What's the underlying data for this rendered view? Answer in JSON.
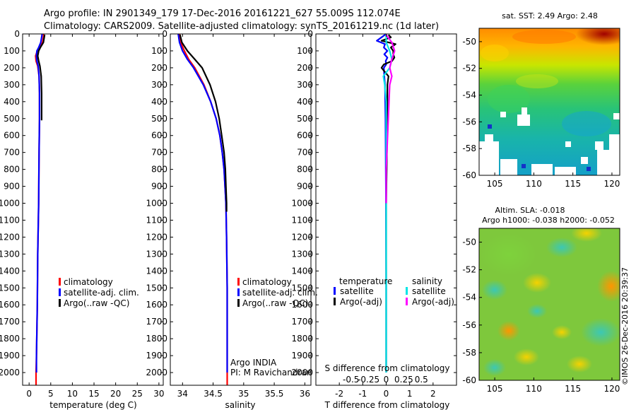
{
  "header": {
    "line1": "Argo profile: IN 2901349_179 17-Dec-2016 20161221_627 55.009S 112.074E",
    "line2": "Climatology: CARS2009. Satellite-adjusted climatology: synTS_20161219.nc (1d later)"
  },
  "footer": {
    "timestamp": "©IMOS 26-Dec-2016 20:39:37"
  },
  "chart_data": [
    {
      "id": "temperature",
      "type": "line",
      "xlabel": "temperature (deg C)",
      "xlim": [
        -1.5,
        31
      ],
      "xticks": [
        0,
        5,
        10,
        15,
        20,
        25,
        30
      ],
      "xtick_labels": [
        "0",
        "5",
        "10",
        "15",
        "20",
        "25",
        "30"
      ],
      "ylim": [
        2075,
        0
      ],
      "yticks": [
        0,
        100,
        200,
        300,
        400,
        500,
        600,
        700,
        800,
        900,
        1000,
        1100,
        1200,
        1300,
        1400,
        1500,
        1600,
        1700,
        1800,
        1900,
        2000
      ],
      "ytick_labels": [
        "0",
        "100",
        "200",
        "300",
        "400",
        "500",
        "600",
        "700",
        "800",
        "900",
        "1000",
        "1100",
        "1200",
        "1300",
        "1400",
        "1500",
        "1600",
        "1700",
        "1800",
        "1900",
        "2000"
      ],
      "legend": [
        "climatology",
        "satellite-adj. clim.",
        "Argo(..raw -QC)"
      ],
      "legend_position": "center-left",
      "series": [
        {
          "name": "climatology",
          "color": "#ff0000",
          "depth": [
            0,
            20,
            50,
            80,
            100,
            130,
            160,
            190,
            250,
            350,
            500,
            700,
            1000,
            1300,
            1600,
            1900,
            2000,
            2075
          ],
          "values": [
            3.4,
            3.3,
            3.1,
            2.4,
            1.9,
            1.5,
            1.6,
            2.0,
            2.3,
            2.4,
            2.4,
            2.3,
            2.2,
            2.0,
            1.9,
            1.7,
            1.6,
            1.6
          ]
        },
        {
          "name": "satellite-adj. clim.",
          "color": "#0000ff",
          "depth": [
            0,
            20,
            50,
            80,
            100,
            130,
            160,
            190,
            250,
            350,
            500,
            700,
            1000,
            1300,
            1600,
            1900,
            2000
          ],
          "values": [
            3.0,
            2.9,
            2.7,
            2.2,
            1.8,
            1.7,
            1.8,
            2.1,
            2.3,
            2.4,
            2.4,
            2.3,
            2.2,
            2.0,
            1.9,
            1.7,
            1.7
          ]
        },
        {
          "name": "Argo(..raw -QC)",
          "color": "#000000",
          "depth": [
            5,
            20,
            50,
            80,
            100,
            130,
            160,
            190,
            250,
            350,
            500,
            510
          ],
          "values": [
            3.6,
            3.5,
            3.3,
            2.6,
            2.2,
            2.0,
            2.2,
            2.5,
            2.8,
            2.9,
            2.9,
            2.9
          ]
        }
      ]
    },
    {
      "id": "salinity",
      "type": "line",
      "xlabel": "salinity",
      "xlim": [
        33.8,
        36.1
      ],
      "xticks": [
        34,
        34.5,
        35,
        35.5,
        36
      ],
      "xtick_labels": [
        "34",
        "34.5",
        "35",
        "35.5",
        "36"
      ],
      "ylim": [
        2075,
        0
      ],
      "legend": [
        "climatology",
        "satellite-adj. clim.",
        "Argo(..raw -QC)"
      ],
      "legend_position": "center-right",
      "annotation": [
        "Argo INDIA",
        "PI: M Ravichandran"
      ],
      "series": [
        {
          "name": "climatology",
          "color": "#ff0000",
          "depth": [
            0,
            50,
            100,
            150,
            200,
            300,
            400,
            500,
            600,
            700,
            800,
            1000,
            1200,
            1500,
            1800,
            2000,
            2075
          ],
          "values": [
            33.95,
            33.97,
            34.03,
            34.1,
            34.2,
            34.35,
            34.46,
            34.55,
            34.61,
            34.65,
            34.68,
            34.71,
            34.72,
            34.73,
            34.73,
            34.73,
            34.73
          ]
        },
        {
          "name": "satellite-adj. clim.",
          "color": "#0000ff",
          "depth": [
            0,
            50,
            100,
            150,
            200,
            300,
            400,
            500,
            600,
            700,
            800,
            1000,
            1200,
            1500,
            1800,
            2000
          ],
          "values": [
            33.93,
            33.95,
            34.0,
            34.08,
            34.18,
            34.34,
            34.46,
            34.55,
            34.61,
            34.65,
            34.68,
            34.71,
            34.72,
            34.73,
            34.73,
            34.73
          ]
        },
        {
          "name": "Argo(..raw -QC)",
          "color": "#000000",
          "depth": [
            5,
            50,
            100,
            150,
            200,
            300,
            400,
            500,
            600,
            700,
            800,
            900,
            1000,
            1050
          ],
          "values": [
            33.96,
            33.99,
            34.08,
            34.2,
            34.32,
            34.45,
            34.54,
            34.6,
            34.64,
            34.68,
            34.7,
            34.71,
            34.72,
            34.72
          ]
        }
      ]
    },
    {
      "id": "difference",
      "type": "line",
      "xlabel": "T difference from climatology",
      "x2label": "S difference from climatology",
      "xlim": [
        -3,
        3
      ],
      "xticks": [
        -2,
        -1,
        0,
        1,
        2
      ],
      "xtick_labels": [
        "-2",
        "-1",
        "0",
        "1",
        "2"
      ],
      "x2ticks": [
        -0.5,
        -0.25,
        0,
        0.25,
        0.5
      ],
      "x2tick_labels": [
        "-0.5",
        "-0.25",
        "0",
        "0.25",
        "0.5"
      ],
      "ylim": [
        2075,
        0
      ],
      "legend_groups": [
        {
          "title": "temperature",
          "items": [
            "satellite",
            "Argo(-adj)"
          ]
        },
        {
          "title": "salinity",
          "items": [
            "satellite",
            "Argo(-adj)"
          ]
        }
      ],
      "legend_position": "center",
      "series": [
        {
          "name": "temperature satellite",
          "color": "#0000ff",
          "depth": [
            0,
            20,
            40,
            60,
            80,
            100,
            120,
            140,
            160,
            180,
            200,
            250,
            300,
            500,
            1000,
            1500,
            2000
          ],
          "values": [
            0.0,
            -0.2,
            -0.4,
            -0.05,
            -0.1,
            0.05,
            -0.08,
            0.05,
            -0.02,
            0.0,
            -0.1,
            -0.08,
            -0.05,
            -0.03,
            -0.01,
            0.0,
            0.0
          ]
        },
        {
          "name": "temperature Argo(-adj)",
          "color": "#000000",
          "depth": [
            5,
            20,
            40,
            60,
            80,
            100,
            120,
            140,
            160,
            180,
            200,
            250,
            300,
            400,
            500,
            1000,
            1500,
            2000
          ],
          "values": [
            0.1,
            0.2,
            -0.2,
            0.4,
            0.2,
            0.3,
            0.3,
            0.35,
            0.25,
            -0.1,
            -0.2,
            0.1,
            0.05,
            0.05,
            0.05,
            0.0,
            0.0,
            0.0
          ]
        },
        {
          "name": "salinity satellite",
          "color": "#00e5e5",
          "depth": [
            0,
            50,
            100,
            150,
            200,
            250,
            300,
            400,
            500,
            700,
            1000,
            1500,
            2000
          ],
          "values": [
            0.0,
            0.0,
            0.05,
            0.08,
            0.05,
            -0.04,
            -0.02,
            0.0,
            0.0,
            0.0,
            0.0,
            0.0,
            0.0
          ]
        },
        {
          "name": "salinity Argo(-adj)",
          "color": "#ff00ff",
          "depth": [
            5,
            50,
            100,
            150,
            200,
            250,
            300,
            400,
            500,
            600,
            700,
            800,
            1000
          ],
          "values": [
            0.0,
            0.08,
            0.12,
            0.08,
            0.05,
            0.08,
            0.05,
            0.04,
            0.03,
            0.02,
            0.01,
            0.0,
            0.0
          ]
        }
      ]
    },
    {
      "id": "sst-map",
      "type": "heatmap",
      "title": "sat. SST: 2.49 Argo: 2.48",
      "xlim": [
        103,
        121
      ],
      "ylim": [
        -60,
        -49
      ],
      "xticks": [
        105,
        110,
        115,
        120
      ],
      "xtick_labels": [
        "105",
        "110",
        "115",
        "120"
      ],
      "yticks": [
        -50,
        -52,
        -54,
        -56,
        -58,
        -60
      ],
      "ytick_labels": [
        "-50",
        "-52",
        "-54",
        "-56",
        "-58",
        "-60"
      ]
    },
    {
      "id": "sla-map",
      "type": "heatmap",
      "title_lines": [
        "Altim. SLA: -0.018",
        "Argo h1000: -0.038 h2000: -0.052"
      ],
      "xlim": [
        103,
        121
      ],
      "ylim": [
        -60,
        -49
      ],
      "xticks": [
        105,
        110,
        115,
        120
      ],
      "xtick_labels": [
        "105",
        "110",
        "115",
        "120"
      ],
      "yticks": [
        -50,
        -52,
        -54,
        -56,
        -58,
        -60
      ],
      "ytick_labels": [
        "-50",
        "-52",
        "-54",
        "-56",
        "-58",
        "-60"
      ]
    }
  ]
}
